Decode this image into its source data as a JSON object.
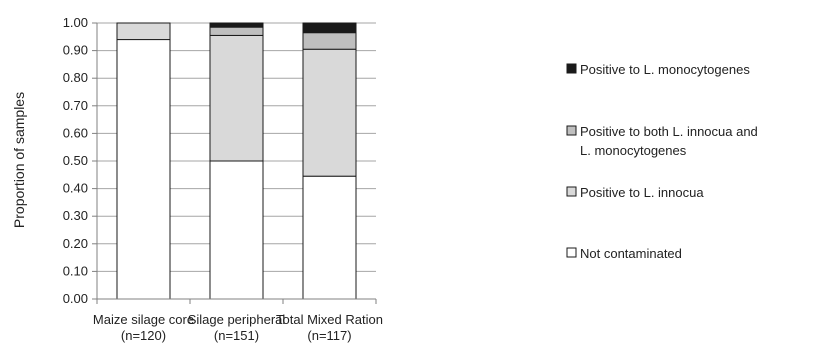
{
  "chart_data": {
    "type": "bar",
    "stacked": true,
    "categories": [
      [
        "Maize silage core",
        "(n=120)"
      ],
      [
        "Silage peripheral",
        "(n=151)"
      ],
      [
        "Total Mixed Ration",
        "(n=117)"
      ]
    ],
    "series": [
      {
        "name": "Not contaminated",
        "values": [
          0.94,
          0.5,
          0.445
        ],
        "color": "#ffffff"
      },
      {
        "name": "Positive to L. innocua",
        "values": [
          0.06,
          0.455,
          0.46
        ],
        "color": "#d9d9d9"
      },
      {
        "name": "Positive to both L. innocua and L. monocytogenes",
        "values": [
          0.0,
          0.03,
          0.06
        ],
        "color": "#bfbfbf"
      },
      {
        "name": "Positive to L. monocytogenes",
        "values": [
          0.0,
          0.015,
          0.035
        ],
        "color": "#1a1a1a"
      }
    ],
    "legend": {
      "position": "right",
      "items": [
        {
          "series": 3,
          "lines": [
            "Positive to L. monocytogenes"
          ]
        },
        {
          "series": 2,
          "lines": [
            "Positive to both L. innocua and",
            "L. monocytogenes"
          ]
        },
        {
          "series": 1,
          "lines": [
            "Positive to L. innocua"
          ]
        },
        {
          "series": 0,
          "lines": [
            "Not contaminated"
          ]
        }
      ]
    },
    "ylabel": "Proportion of samples",
    "xlabel": "",
    "ylim": [
      0,
      1.0
    ],
    "yticks": [
      "0.00",
      "0.10",
      "0.20",
      "0.30",
      "0.40",
      "0.50",
      "0.60",
      "0.70",
      "0.80",
      "0.90",
      "1.00"
    ],
    "grid": true,
    "colors": {
      "axis": "#808080",
      "grid": "#a6a6a6",
      "bar_edge": "#1a1a1a"
    }
  }
}
